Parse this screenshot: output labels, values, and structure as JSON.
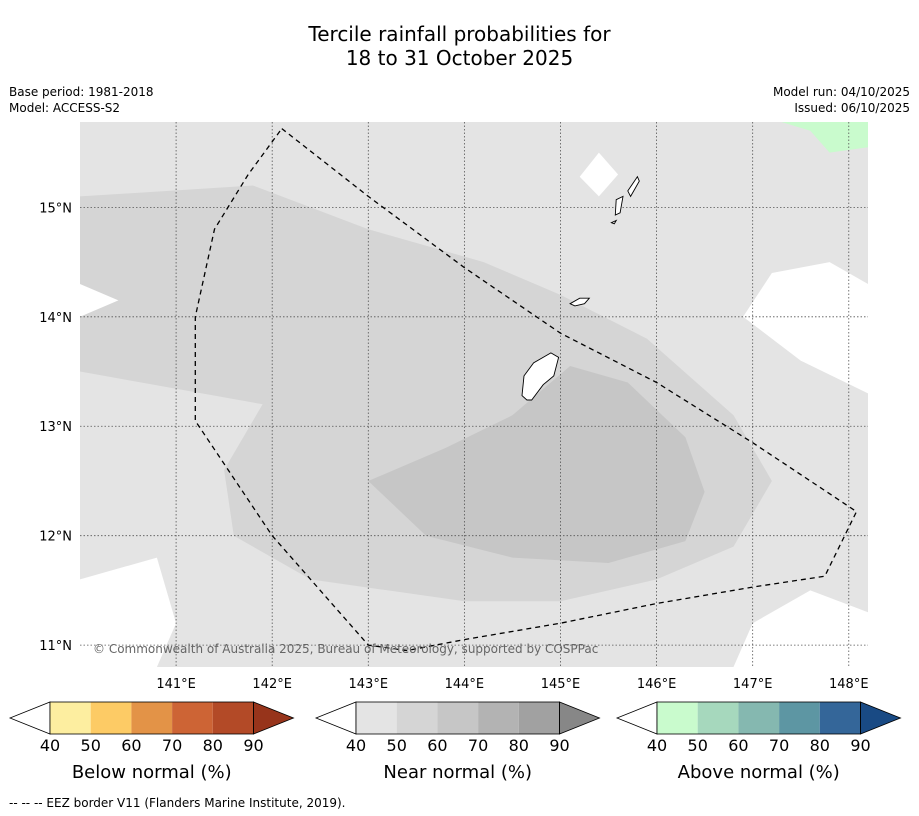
{
  "title": {
    "line1": "Tercile rainfall probabilities for",
    "line2": "18 to 31 October 2025"
  },
  "meta": {
    "base_period": "Base period: 1981-2018",
    "model": "Model: ACCESS-S2",
    "model_run": "Model run: 04/10/2025",
    "issued": "Issued: 06/10/2025"
  },
  "map": {
    "lon_range": [
      140.0,
      148.2
    ],
    "lat_range": [
      10.8,
      15.78
    ],
    "lon_ticks": [
      {
        "value": 141,
        "label": "141°E"
      },
      {
        "value": 142,
        "label": "142°E"
      },
      {
        "value": 143,
        "label": "143°E"
      },
      {
        "value": 144,
        "label": "144°E"
      },
      {
        "value": 145,
        "label": "145°E"
      },
      {
        "value": 146,
        "label": "146°E"
      },
      {
        "value": 147,
        "label": "147°E"
      },
      {
        "value": 148,
        "label": "148°E"
      }
    ],
    "lat_ticks": [
      {
        "value": 15,
        "label": "15°N"
      },
      {
        "value": 14,
        "label": "14°N"
      },
      {
        "value": 13,
        "label": "13°N"
      },
      {
        "value": 12,
        "label": "12°N"
      },
      {
        "value": 11,
        "label": "11°N"
      }
    ],
    "gridlines": true,
    "copyright": "© Commonwealth of Australia 2025, Bureau of Meteorology, supported by COSPPac",
    "eez_border": [
      [
        142.1,
        15.72
      ],
      [
        143.0,
        15.1
      ],
      [
        144.0,
        14.45
      ],
      [
        145.0,
        13.85
      ],
      [
        146.0,
        13.4
      ],
      [
        147.0,
        12.85
      ],
      [
        148.08,
        12.22
      ],
      [
        147.75,
        11.63
      ],
      [
        147.0,
        11.53
      ],
      [
        146.0,
        11.38
      ],
      [
        145.0,
        11.2
      ],
      [
        144.0,
        11.05
      ],
      [
        143.4,
        10.95
      ],
      [
        143.0,
        11.0
      ],
      [
        142.0,
        12.0
      ],
      [
        141.2,
        13.05
      ],
      [
        141.2,
        14.0
      ],
      [
        141.4,
        14.8
      ],
      [
        141.75,
        15.3
      ],
      [
        142.1,
        15.72
      ]
    ],
    "islands": [
      {
        "name": "Guam",
        "outline": [
          [
            144.62,
            13.46
          ],
          [
            144.72,
            13.58
          ],
          [
            144.9,
            13.67
          ],
          [
            144.98,
            13.63
          ],
          [
            144.93,
            13.46
          ],
          [
            144.82,
            13.38
          ],
          [
            144.7,
            13.24
          ],
          [
            144.65,
            13.24
          ],
          [
            144.6,
            13.28
          ]
        ]
      },
      {
        "name": "Rota",
        "outline": [
          [
            145.1,
            14.12
          ],
          [
            145.2,
            14.17
          ],
          [
            145.3,
            14.17
          ],
          [
            145.25,
            14.12
          ],
          [
            145.15,
            14.1
          ]
        ]
      },
      {
        "name": "Tinian",
        "outline": [
          [
            145.58,
            15.07
          ],
          [
            145.65,
            15.1
          ],
          [
            145.62,
            14.95
          ],
          [
            145.57,
            14.93
          ]
        ]
      },
      {
        "name": "Saipan",
        "outline": [
          [
            145.7,
            15.15
          ],
          [
            145.8,
            15.28
          ],
          [
            145.82,
            15.24
          ],
          [
            145.73,
            15.1
          ]
        ]
      },
      {
        "name": "Aguijan",
        "outline": [
          [
            145.53,
            14.86
          ],
          [
            145.58,
            14.88
          ],
          [
            145.56,
            14.85
          ]
        ]
      }
    ],
    "near_normal_regions": [
      {
        "band": "40-50",
        "polygon": [
          [
            140.0,
            15.4
          ],
          [
            142.0,
            15.6
          ],
          [
            143.0,
            15.45
          ],
          [
            144.4,
            15.5
          ],
          [
            145.0,
            15.3
          ],
          [
            145.8,
            15.1
          ],
          [
            146.5,
            15.3
          ],
          [
            146.8,
            15.78
          ],
          [
            140.0,
            15.78
          ]
        ]
      },
      {
        "band": "50-60",
        "polygon": [
          [
            140.0,
            15.1
          ],
          [
            141.8,
            15.2
          ],
          [
            143.0,
            14.8
          ],
          [
            144.2,
            14.5
          ],
          [
            145.0,
            14.2
          ],
          [
            145.9,
            13.8
          ],
          [
            146.8,
            13.1
          ],
          [
            147.2,
            12.5
          ],
          [
            146.8,
            11.9
          ],
          [
            146.0,
            11.6
          ],
          [
            145.0,
            11.4
          ],
          [
            144.0,
            11.4
          ],
          [
            142.4,
            11.6
          ],
          [
            141.6,
            12.0
          ],
          [
            141.5,
            12.6
          ],
          [
            141.9,
            13.2
          ],
          [
            140.0,
            13.5
          ]
        ]
      },
      {
        "band": "60-70",
        "polygon": [
          [
            143.0,
            12.5
          ],
          [
            143.8,
            12.8
          ],
          [
            144.5,
            13.1
          ],
          [
            145.1,
            13.55
          ],
          [
            145.7,
            13.4
          ],
          [
            146.3,
            12.9
          ],
          [
            146.5,
            12.4
          ],
          [
            146.3,
            11.95
          ],
          [
            145.5,
            11.75
          ],
          [
            144.5,
            11.8
          ],
          [
            143.6,
            12.0
          ]
        ]
      }
    ],
    "above_normal_regions": [
      {
        "band": "40-50",
        "polygon": [
          [
            147.3,
            15.78
          ],
          [
            148.2,
            15.78
          ],
          [
            148.2,
            15.55
          ],
          [
            147.8,
            15.5
          ],
          [
            147.6,
            15.7
          ]
        ]
      }
    ],
    "clear_regions": [
      {
        "polygon": [
          [
            145.2,
            15.28
          ],
          [
            145.4,
            15.5
          ],
          [
            145.6,
            15.3
          ],
          [
            145.4,
            15.1
          ]
        ]
      },
      {
        "polygon": [
          [
            140.0,
            14.3
          ],
          [
            140.4,
            14.15
          ],
          [
            140.0,
            14.0
          ]
        ]
      },
      {
        "polygon": [
          [
            147.2,
            14.4
          ],
          [
            147.8,
            14.5
          ],
          [
            148.2,
            14.3
          ],
          [
            148.2,
            13.3
          ],
          [
            147.5,
            13.6
          ],
          [
            146.9,
            14.0
          ]
        ]
      },
      {
        "polygon": [
          [
            147.0,
            11.2
          ],
          [
            147.6,
            11.5
          ],
          [
            148.2,
            11.3
          ],
          [
            148.2,
            10.8
          ],
          [
            146.8,
            10.8
          ]
        ]
      },
      {
        "polygon": [
          [
            140.0,
            11.6
          ],
          [
            140.8,
            11.8
          ],
          [
            141.0,
            11.2
          ],
          [
            140.8,
            10.8
          ],
          [
            140.0,
            10.8
          ]
        ]
      }
    ]
  },
  "colorbars": [
    {
      "id": "below",
      "title": "Below normal (%)",
      "labels": [
        "40",
        "50",
        "60",
        "70",
        "80",
        "90"
      ],
      "colors": [
        "#ffffff",
        "#fdeea0",
        "#fdcb65",
        "#e39347",
        "#cd6435",
        "#b34a27",
        "#97341b"
      ]
    },
    {
      "id": "near",
      "title": "Near normal (%)",
      "labels": [
        "40",
        "50",
        "60",
        "70",
        "80",
        "90"
      ],
      "colors": [
        "#ffffff",
        "#e4e4e4",
        "#d5d5d5",
        "#c6c6c6",
        "#b3b3b3",
        "#a1a1a1",
        "#878787"
      ]
    },
    {
      "id": "above",
      "title": "Above normal (%)",
      "labels": [
        "40",
        "50",
        "60",
        "70",
        "80",
        "90"
      ],
      "colors": [
        "#ffffff",
        "#c9fbcd",
        "#a6d8bd",
        "#85b8b0",
        "#5d96a3",
        "#346699",
        "#194a84"
      ]
    }
  ],
  "footnote": "--  --  -- EEZ border V11 (Flanders Marine Institute, 2019).",
  "colors": {
    "near_40_50": "#e4e4e4",
    "near_50_60": "#d5d5d5",
    "near_60_70": "#c6c6c6",
    "above_40_50": "#c9fbcd",
    "clear": "#ffffff"
  }
}
